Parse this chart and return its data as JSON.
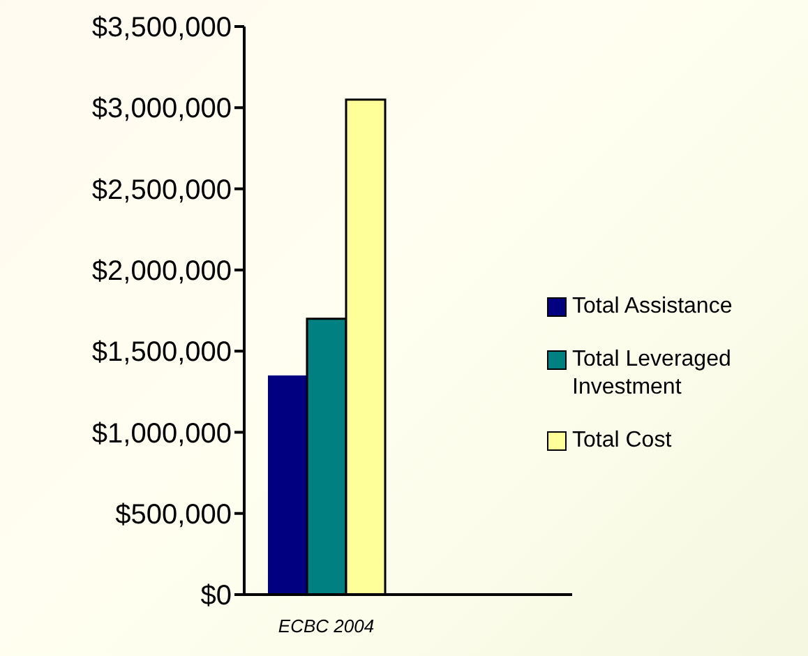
{
  "chart_data": {
    "type": "bar",
    "categories": [
      "ECBC 2004",
      null
    ],
    "series": [
      {
        "name": "Total Assistance",
        "color": "#000080",
        "values": [
          1350000,
          null
        ]
      },
      {
        "name": "Total Leveraged Investment",
        "color": "#008080",
        "values": [
          1700000,
          null
        ]
      },
      {
        "name": "Total Cost",
        "color": "#ffff99",
        "values": [
          3050000,
          null
        ]
      }
    ],
    "ylim": [
      0,
      3500000
    ],
    "yticks": [
      {
        "value": 0,
        "label": "$0"
      },
      {
        "value": 500000,
        "label": "$500,000"
      },
      {
        "value": 1000000,
        "label": "$1,000,000"
      },
      {
        "value": 1500000,
        "label": "$1,500,000"
      },
      {
        "value": 2000000,
        "label": "$2,000,000"
      },
      {
        "value": 2500000,
        "label": "$2,500,000"
      },
      {
        "value": 3000000,
        "label": "$3,000,000"
      },
      {
        "value": 3500000,
        "label": "$3,500,000"
      }
    ],
    "grid": false,
    "legend": "right"
  }
}
